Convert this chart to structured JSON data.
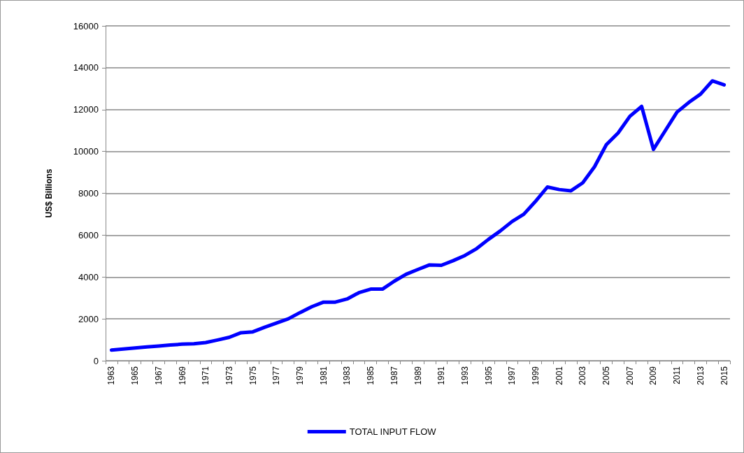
{
  "chart_data": {
    "type": "line",
    "ylabel": "US$ Billions",
    "categories": [
      "1963",
      null,
      "1965",
      null,
      "1967",
      null,
      "1969",
      null,
      "1971",
      null,
      "1973",
      null,
      "1975",
      null,
      "1977",
      null,
      "1979",
      null,
      "1981",
      null,
      "1983",
      null,
      "1985",
      null,
      "1987",
      null,
      "1989",
      null,
      "1991",
      null,
      "1993",
      null,
      "1995",
      null,
      "1997",
      null,
      "1999",
      null,
      "2001",
      null,
      "2003",
      null,
      "2005",
      null,
      "2007",
      null,
      "2009",
      null,
      "2011",
      null,
      "2013",
      null,
      "2015"
    ],
    "series": [
      {
        "name": "TOTAL INPUT FLOW",
        "color": "#0000ff",
        "values": [
          510,
          560,
          610,
          660,
          700,
          750,
          790,
          810,
          870,
          990,
          1120,
          1340,
          1380,
          1600,
          1800,
          2000,
          2300,
          2580,
          2800,
          2800,
          2950,
          3250,
          3420,
          3420,
          3800,
          4130,
          4360,
          4580,
          4560,
          4780,
          5030,
          5360,
          5800,
          6200,
          6650,
          7000,
          7620,
          8300,
          8180,
          8120,
          8500,
          9270,
          10320,
          10880,
          11680,
          12150,
          10100,
          10990,
          11880,
          12340,
          12740,
          13370,
          13180
        ]
      }
    ],
    "ylim": [
      0,
      16000
    ],
    "yticks": [
      0,
      2000,
      4000,
      6000,
      8000,
      10000,
      12000,
      14000,
      16000
    ],
    "grid": "y",
    "legend": "bottom",
    "marker": "none",
    "line_style": "solid"
  }
}
